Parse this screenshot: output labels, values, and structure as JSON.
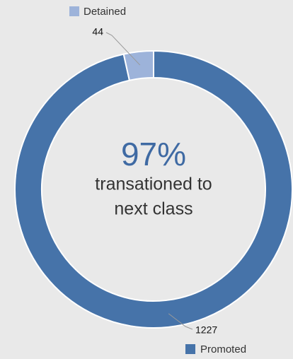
{
  "chart_data": {
    "type": "donut",
    "categories": [
      "Detained",
      "Promoted"
    ],
    "values": [
      44,
      1227
    ],
    "colors": [
      "#9db3da",
      "#4673a9"
    ],
    "center_value": "97%",
    "center_label": [
      "transationed to",
      "next class"
    ]
  }
}
